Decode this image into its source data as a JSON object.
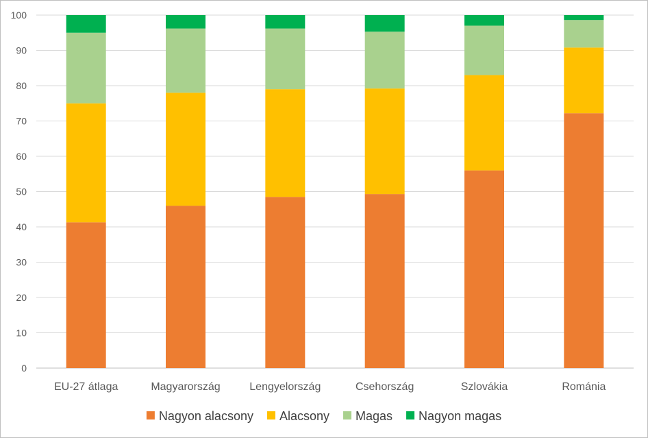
{
  "chart_data": {
    "type": "stacked-bar",
    "title": "",
    "xlabel": "",
    "ylabel": "",
    "ylim": [
      0,
      100
    ],
    "yticks": [
      0,
      10,
      20,
      30,
      40,
      50,
      60,
      70,
      80,
      90,
      100
    ],
    "grid": true,
    "legend_position": "bottom",
    "categories": [
      "EU-27 átlaga",
      "Magyarország",
      "Lengyelország",
      "Csehország",
      "Szlovákia",
      "Románia"
    ],
    "series": [
      {
        "name": "Nagyon alacsony",
        "color": "#ED7D31",
        "values": [
          41.3,
          46.0,
          48.5,
          49.3,
          56.0,
          72.2
        ]
      },
      {
        "name": "Alacsony",
        "color": "#FFC000",
        "values": [
          33.7,
          32.0,
          30.5,
          29.9,
          27.0,
          18.6
        ]
      },
      {
        "name": "Magas",
        "color": "#A9D18E",
        "values": [
          20.0,
          18.2,
          17.2,
          16.1,
          14.0,
          7.8
        ]
      },
      {
        "name": "Nagyon magas",
        "color": "#00B050",
        "values": [
          5.0,
          3.8,
          3.8,
          4.7,
          3.0,
          1.4
        ]
      }
    ]
  }
}
